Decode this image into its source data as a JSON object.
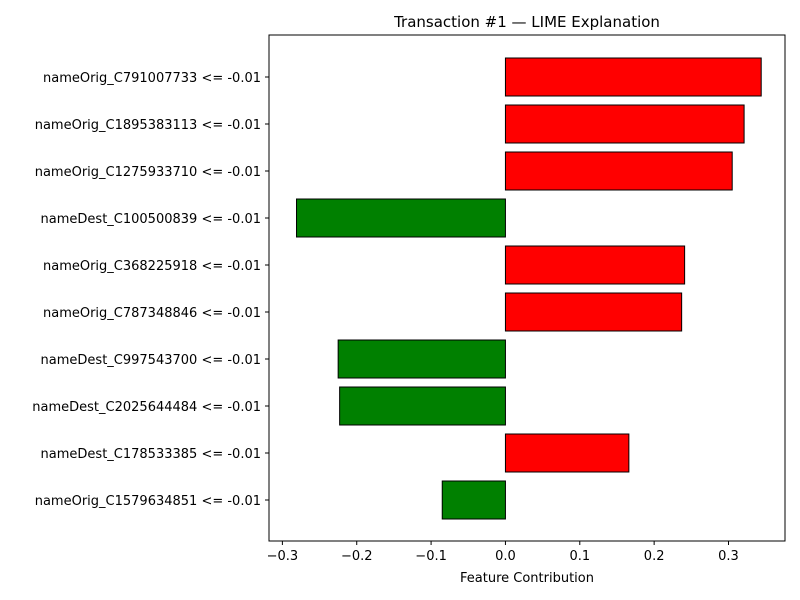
{
  "chart_data": {
    "type": "bar",
    "orientation": "horizontal",
    "title": "Transaction #1 — LIME Explanation",
    "xlabel": "Feature Contribution",
    "ylabel": "",
    "xlim": [
      -0.318,
      0.376
    ],
    "xticks": [
      -0.3,
      -0.2,
      -0.1,
      0.0,
      0.1,
      0.2,
      0.3
    ],
    "xtick_labels": [
      "−0.3",
      "−0.2",
      "−0.1",
      "0.0",
      "0.1",
      "0.2",
      "0.3"
    ],
    "positive_color": "#ff0000",
    "negative_color": "#008000",
    "edge_color": "#000000",
    "grid": false,
    "categories": [
      "nameOrig_C791007733 <= -0.01",
      "nameOrig_C1895383113 <= -0.01",
      "nameOrig_C1275933710 <= -0.01",
      "nameDest_C100500839 <= -0.01",
      "nameOrig_C368225918 <= -0.01",
      "nameOrig_C787348846 <= -0.01",
      "nameDest_C997543700 <= -0.01",
      "nameDest_C2025644484 <= -0.01",
      "nameDest_C178533385 <= -0.01",
      "nameOrig_C1579634851 <= -0.01"
    ],
    "values": [
      0.344,
      0.321,
      0.305,
      -0.281,
      0.241,
      0.237,
      -0.225,
      -0.223,
      0.166,
      -0.085
    ]
  }
}
